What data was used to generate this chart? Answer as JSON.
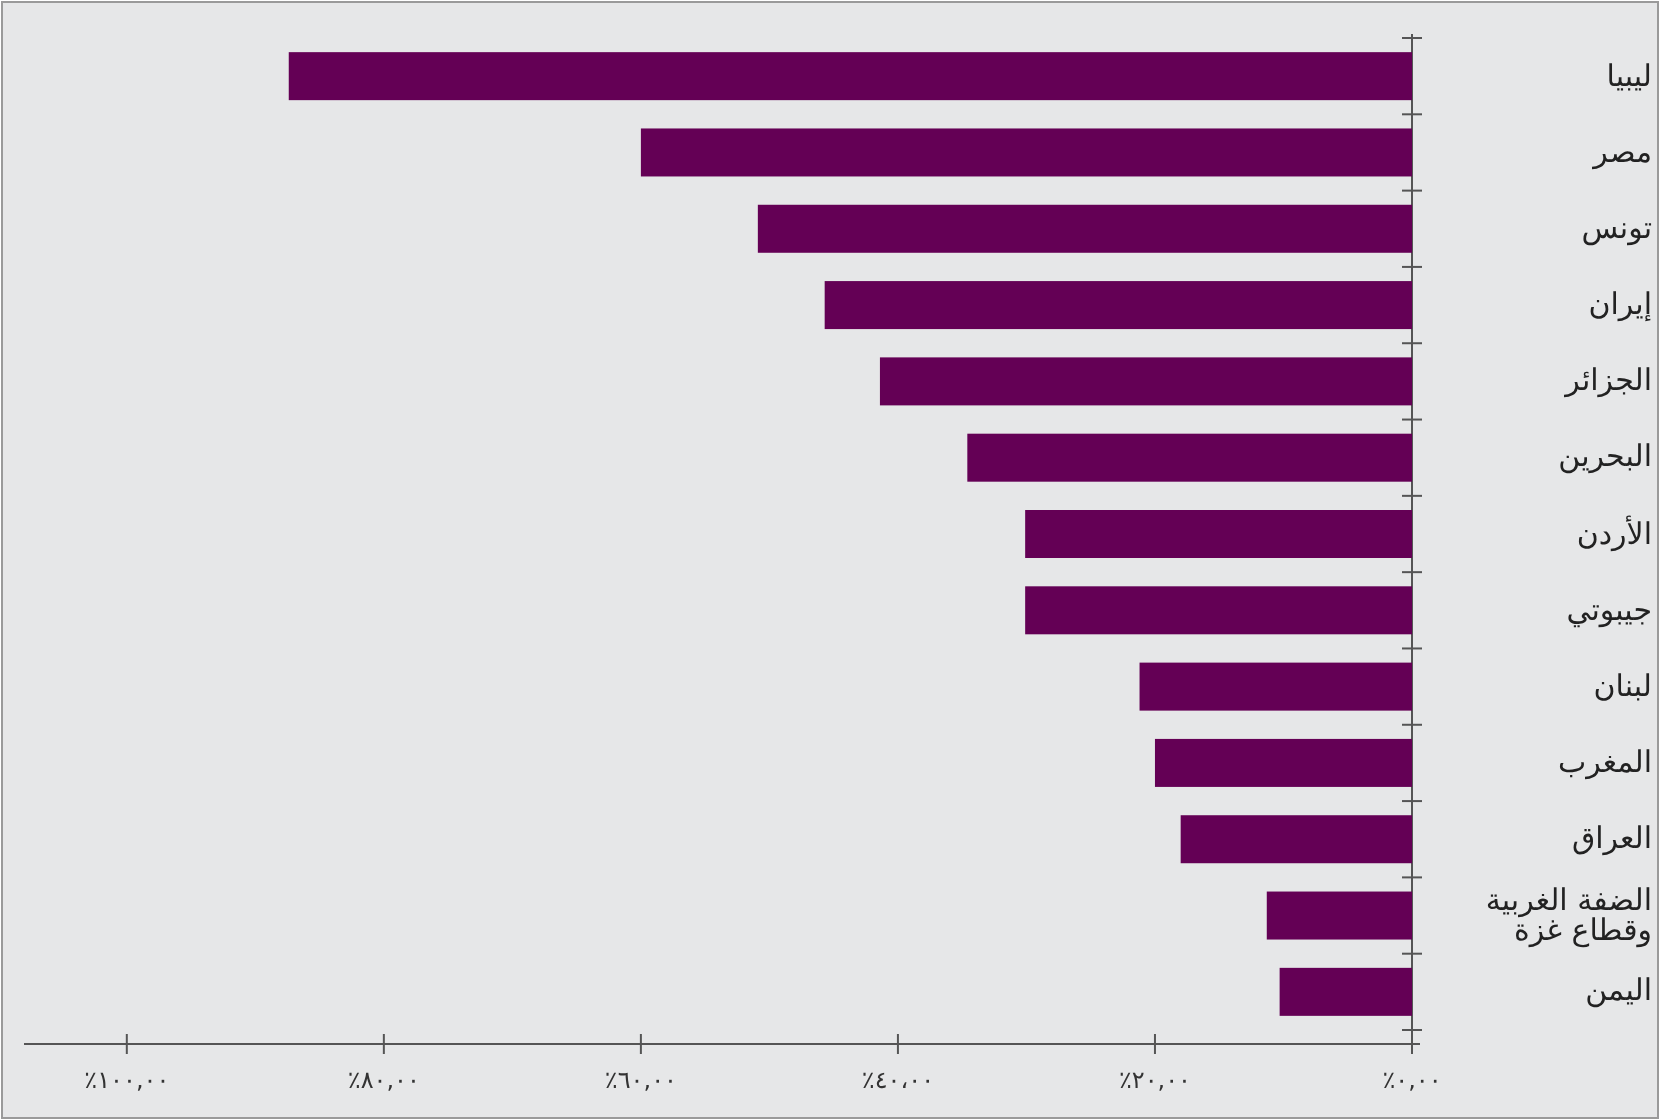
{
  "chart_data": {
    "type": "bar",
    "orientation": "horizontal",
    "color": "#640055",
    "categories": [
      "ليبيا",
      "مصر",
      "تونس",
      "إيران",
      "الجزائر",
      "البحرين",
      "الأردن",
      "جيبوتي",
      "لبنان",
      "المغرب",
      "العراق",
      "الضفة الغربية وقطاع غزة",
      "اليمن"
    ],
    "values": [
      87.4,
      60.0,
      50.9,
      45.7,
      41.4,
      34.6,
      30.1,
      30.1,
      21.2,
      20.0,
      18.0,
      11.3,
      10.3
    ],
    "xlim": [
      108,
      0
    ],
    "xticks": [
      {
        "value": 100,
        "label": "٪١٠٠,٠٠"
      },
      {
        "value": 80,
        "label": "٪٨٠,٠٠"
      },
      {
        "value": 60,
        "label": "٪٦٠,٠٠"
      },
      {
        "value": 40,
        "label": "٪٤٠،٠٠"
      },
      {
        "value": 20,
        "label": "٪٢٠,٠٠"
      },
      {
        "value": 0,
        "label": "٪٠,٠٠"
      }
    ]
  }
}
